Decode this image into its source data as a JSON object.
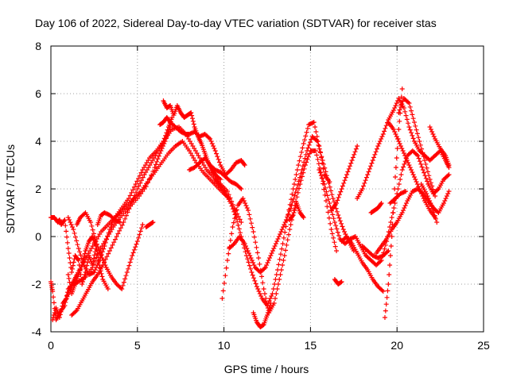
{
  "chart_data": {
    "type": "scatter",
    "title": "Day 106 of 2022, Sidereal Day-to-day VTEC variation (SDTVAR) for receiver stas",
    "xlabel": "GPS time / hours",
    "ylabel": "SDTVAR / TECUs",
    "xlim": [
      0,
      25
    ],
    "ylim": [
      -4,
      8
    ],
    "xticks": [
      0,
      5,
      10,
      15,
      20,
      25
    ],
    "yticks": [
      -4,
      -2,
      0,
      2,
      4,
      6,
      8
    ],
    "grid": true,
    "marker": "+",
    "series_color": "#ff0000",
    "series": [
      {
        "x": [
          0.0,
          0.2,
          0.4,
          0.5,
          0.6,
          0.8,
          1.0,
          1.2,
          1.4,
          1.6,
          1.8,
          2.0,
          2.2,
          2.4,
          2.6
        ],
        "y": [
          0.8,
          0.8,
          0.6,
          0.7,
          0.5,
          0.7,
          -0.5,
          -1.5,
          -0.8,
          -1.0,
          -2.0,
          -1.5,
          -0.8,
          -1.2,
          -0.5
        ]
      },
      {
        "x": [
          0.0,
          0.1,
          0.3,
          0.5,
          0.8,
          1.0,
          1.3,
          1.6,
          2.0,
          2.4,
          2.8,
          3.2,
          3.6,
          4.0,
          4.5,
          5.0,
          5.5,
          6.0,
          6.3,
          6.6,
          6.9
        ],
        "y": [
          -1.9,
          -2.3,
          -3.5,
          -3.2,
          -2.9,
          -2.2,
          -2.0,
          -1.9,
          -1.7,
          -1.3,
          -0.6,
          -0.1,
          0.4,
          0.8,
          1.2,
          1.6,
          2.1,
          2.9,
          3.5,
          4.0,
          4.6
        ]
      },
      {
        "x": [
          0.1,
          0.3,
          0.5,
          0.7,
          0.9,
          1.1,
          1.3,
          1.5,
          1.8,
          2.1,
          2.5,
          2.9,
          3.3,
          3.7,
          4.1,
          4.5,
          4.9,
          5.3,
          5.7,
          6.1,
          6.5,
          6.8,
          7.0
        ],
        "y": [
          -3.5,
          -3.0,
          -3.4,
          -2.8,
          -2.6,
          -2.2,
          -1.9,
          -1.6,
          -1.2,
          -0.8,
          -0.3,
          0.2,
          0.5,
          0.8,
          1.2,
          1.6,
          2.2,
          2.8,
          3.3,
          3.6,
          4.0,
          4.6,
          5.0
        ]
      },
      {
        "x": [
          1.2,
          1.5,
          1.8,
          2.1,
          2.4,
          2.7,
          3.0,
          3.4,
          3.8,
          4.2,
          4.6,
          5.0,
          5.4,
          5.8,
          6.2,
          6.6,
          7.0,
          7.4,
          7.8,
          8.2,
          8.6,
          9.0,
          9.4,
          9.8,
          10.2,
          10.6,
          11.0
        ],
        "y": [
          -3.3,
          -3.1,
          -2.7,
          -2.3,
          -1.9,
          -1.6,
          -1.2,
          -0.6,
          0.0,
          0.6,
          1.3,
          2.0,
          2.6,
          3.1,
          3.6,
          4.1,
          4.5,
          4.6,
          4.3,
          3.8,
          3.3,
          2.8,
          2.5,
          2.2,
          1.9,
          1.2,
          0.6
        ]
      },
      {
        "x": [
          1.0,
          1.3,
          1.6,
          1.9,
          2.2,
          2.5,
          2.8,
          3.1,
          3.4,
          3.7,
          4.0,
          4.4,
          4.8,
          5.2,
          5.6,
          6.0,
          6.4,
          6.8,
          7.2,
          7.6,
          8.0,
          8.4,
          8.8,
          9.2,
          9.6,
          10.0,
          10.3
        ],
        "y": [
          0.8,
          0.3,
          -0.5,
          -1.2,
          -1.6,
          -1.5,
          -1.0,
          -0.4,
          0.3,
          0.8,
          1.0,
          1.3,
          1.6,
          1.9,
          2.3,
          2.7,
          3.1,
          3.5,
          3.8,
          4.0,
          3.6,
          3.1,
          2.7,
          2.4,
          2.1,
          1.8,
          1.6
        ]
      },
      {
        "x": [
          1.0,
          1.2,
          1.4,
          1.6,
          1.8,
          2.0,
          2.2,
          2.4,
          2.6,
          2.8,
          3.0,
          3.3
        ],
        "y": [
          -1.6,
          -2.4,
          -2.0,
          -1.6,
          -1.2,
          -0.6,
          -0.2,
          0.0,
          -0.4,
          -1.2,
          -1.8,
          -2.2
        ]
      },
      {
        "x": [
          1.5,
          1.7,
          2.0,
          2.3,
          2.6,
          2.9,
          3.2,
          3.5,
          3.8,
          4.1,
          4.4,
          4.7,
          5.0,
          5.3
        ],
        "y": [
          0.5,
          0.8,
          1.0,
          0.6,
          -0.2,
          -0.8,
          -1.3,
          -1.7,
          -2.0,
          -2.2,
          -1.5,
          -0.8,
          -0.2,
          0.5
        ]
      },
      {
        "x": [
          2.7,
          2.9,
          3.1,
          3.4,
          3.7,
          4.0
        ],
        "y": [
          0.5,
          0.9,
          1.0,
          0.9,
          0.7,
          0.6
        ]
      },
      {
        "x": [
          5.5,
          5.7,
          5.9
        ],
        "y": [
          0.4,
          0.5,
          0.6
        ]
      },
      {
        "x": [
          6.5,
          6.7,
          6.9,
          7.1,
          7.3,
          7.5,
          7.7,
          7.9,
          8.1,
          8.3,
          8.5,
          8.7,
          8.9,
          9.1,
          9.3,
          9.5,
          9.8
        ],
        "y": [
          5.7,
          5.4,
          5.5,
          5.1,
          5.5,
          5.2,
          5.0,
          5.1,
          5.2,
          4.6,
          4.2,
          3.9,
          3.5,
          3.1,
          2.8,
          2.6,
          2.4
        ]
      },
      {
        "x": [
          6.3,
          6.5,
          6.7,
          6.9,
          7.2,
          7.5,
          7.8,
          8.0,
          8.3,
          8.6,
          8.9,
          9.2,
          9.5,
          9.8,
          10.1,
          10.4,
          10.7,
          11.0,
          11.2
        ],
        "y": [
          4.7,
          4.8,
          5.0,
          4.8,
          4.6,
          4.4,
          4.3,
          4.3,
          4.4,
          4.2,
          4.3,
          4.1,
          3.6,
          3.0,
          2.6,
          2.8,
          3.1,
          3.2,
          3.0
        ]
      },
      {
        "x": [
          8.0,
          8.3,
          8.6,
          8.9,
          9.2,
          9.5,
          9.8,
          10.1,
          10.4,
          10.7,
          11.0
        ],
        "y": [
          2.8,
          2.9,
          3.1,
          3.3,
          3.0,
          2.8,
          2.7,
          2.5,
          2.3,
          2.2,
          2.0
        ]
      },
      {
        "x": [
          9.5,
          9.8,
          10.1,
          10.4,
          10.7,
          11.0,
          11.3,
          11.6,
          11.9,
          12.2,
          12.5,
          12.8,
          13.1,
          13.4,
          13.7,
          14.0,
          14.3,
          14.6,
          14.9,
          15.2,
          15.5,
          15.8,
          16.1
        ],
        "y": [
          2.4,
          2.1,
          1.8,
          1.4,
          0.8,
          0.0,
          -0.8,
          -1.5,
          -2.1,
          -2.6,
          -2.9,
          -2.4,
          -1.4,
          -0.3,
          0.9,
          2.0,
          3.0,
          3.9,
          4.7,
          4.8,
          3.8,
          2.6,
          2.3
        ]
      },
      {
        "x": [
          9.9,
          10.2,
          10.5,
          10.8,
          11.1,
          11.4,
          11.7,
          12.0,
          12.3,
          12.6,
          12.9,
          13.2,
          13.5,
          13.8,
          14.1,
          14.4,
          14.7,
          15.0,
          15.3,
          15.6,
          15.9,
          16.2,
          16.5
        ],
        "y": [
          -2.6,
          -1.0,
          0.4,
          1.3,
          1.6,
          1.1,
          0.2,
          -0.9,
          -2.2,
          -3.2,
          -2.8,
          -1.8,
          -0.8,
          0.3,
          1.3,
          2.2,
          3.0,
          3.6,
          3.6,
          2.7,
          1.5,
          0.3,
          -0.6
        ]
      },
      {
        "x": [
          10.3,
          10.6,
          10.9,
          11.2,
          11.5,
          11.8,
          12.1,
          12.4,
          12.7,
          13.0,
          13.3,
          13.6,
          13.9,
          14.2,
          14.5,
          14.8,
          15.1,
          15.4,
          15.7,
          16.0,
          16.3,
          16.6,
          16.9,
          17.2,
          17.5
        ],
        "y": [
          -0.5,
          -0.3,
          0.0,
          -0.3,
          -0.8,
          -1.3,
          -1.5,
          -1.3,
          -0.8,
          -0.3,
          0.2,
          0.7,
          1.3,
          2.0,
          2.8,
          3.6,
          4.2,
          4.0,
          3.2,
          2.4,
          1.6,
          0.9,
          0.3,
          -0.2,
          -0.6
        ]
      },
      {
        "x": [
          11.7,
          11.9,
          12.1,
          12.3,
          12.5,
          12.7
        ],
        "y": [
          -3.2,
          -3.6,
          -3.8,
          -3.7,
          -3.3,
          -2.8
        ]
      },
      {
        "x": [
          13.8,
          14.0,
          14.2,
          14.4,
          14.6
        ],
        "y": [
          0.7,
          0.9,
          1.4,
          1.0,
          0.8
        ]
      },
      {
        "x": [
          15.5,
          15.8,
          16.1,
          16.4,
          16.7,
          17.0,
          17.3,
          17.6,
          17.9,
          18.2,
          18.5,
          18.8,
          19.1,
          19.4,
          19.7,
          20.0,
          20.3,
          20.6,
          20.9,
          21.2,
          21.5,
          21.8,
          22.1,
          22.4,
          22.7,
          23.0
        ],
        "y": [
          2.8,
          2.2,
          1.4,
          0.6,
          -0.1,
          -0.3,
          -0.1,
          0.0,
          -0.4,
          -0.8,
          -1.0,
          -1.2,
          -1.0,
          -0.2,
          0.8,
          1.8,
          2.8,
          3.4,
          3.6,
          3.4,
          2.8,
          2.2,
          1.8,
          2.0,
          2.4,
          2.6
        ]
      },
      {
        "x": [
          16.2,
          16.5,
          16.8,
          17.1,
          17.4,
          17.7
        ],
        "y": [
          1.1,
          1.4,
          2.0,
          2.6,
          3.2,
          3.8
        ]
      },
      {
        "x": [
          16.4,
          16.6,
          16.8
        ],
        "y": [
          -1.8,
          -2.0,
          -1.9
        ]
      },
      {
        "x": [
          16.8,
          17.1,
          17.4,
          17.7,
          18.0,
          18.3,
          18.6,
          18.9,
          19.2
        ],
        "y": [
          -0.2,
          0.0,
          -0.3,
          -0.7,
          -1.1,
          -1.4,
          -1.8,
          -2.1,
          -2.3
        ]
      },
      {
        "x": [
          17.7,
          18.0,
          18.3,
          18.6,
          18.9,
          19.2,
          19.5,
          19.8,
          20.1,
          20.4,
          20.7,
          21.0,
          21.3,
          21.6,
          21.9,
          22.2,
          22.5,
          22.8,
          23.0
        ],
        "y": [
          1.6,
          2.0,
          2.6,
          3.2,
          3.8,
          4.3,
          4.9,
          5.3,
          5.8,
          5.4,
          4.6,
          4.0,
          3.6,
          3.4,
          3.2,
          3.4,
          3.6,
          3.2,
          2.9
        ]
      },
      {
        "x": [
          18.8,
          19.1,
          19.4,
          19.7,
          20.0,
          20.3,
          20.6,
          20.9,
          21.2,
          21.5,
          21.8,
          22.1,
          22.4,
          22.7,
          23.0
        ],
        "y": [
          -0.7,
          -0.4,
          -0.1,
          0.3,
          0.6,
          1.0,
          1.5,
          1.9,
          2.0,
          1.8,
          1.5,
          1.2,
          1.0,
          1.4,
          1.9
        ]
      },
      {
        "x": [
          18.0,
          18.3,
          18.6,
          18.9,
          19.2,
          19.5
        ],
        "y": [
          -0.4,
          -0.6,
          -0.8,
          -0.9,
          -0.8,
          -0.6
        ]
      },
      {
        "x": [
          19.3,
          19.5,
          19.7,
          19.9,
          20.1,
          20.3
        ],
        "y": [
          -3.4,
          -2.0,
          0.0,
          2.5,
          4.5,
          6.2
        ]
      },
      {
        "x": [
          19.5,
          19.8,
          20.1,
          20.4,
          20.7,
          21.0,
          21.3,
          21.6,
          21.9,
          22.2
        ],
        "y": [
          4.8,
          4.5,
          4.0,
          3.5,
          3.0,
          2.5,
          2.0,
          1.5,
          1.1,
          0.8
        ]
      },
      {
        "x": [
          20.1,
          20.4,
          20.7,
          21.0,
          21.3,
          21.6,
          21.9,
          22.2
        ],
        "y": [
          5.2,
          5.8,
          5.6,
          4.8,
          4.0,
          3.2,
          2.4,
          1.7
        ]
      },
      {
        "x": [
          21.9,
          22.2,
          22.5,
          22.8,
          23.0
        ],
        "y": [
          4.6,
          4.1,
          3.7,
          3.4,
          3.0
        ]
      },
      {
        "x": [
          21.4,
          21.7,
          22.0,
          22.3
        ],
        "y": [
          2.2,
          1.8,
          1.3,
          0.6
        ]
      },
      {
        "x": [
          18.5,
          18.7,
          18.9,
          19.1
        ],
        "y": [
          1.0,
          1.1,
          1.2,
          1.4
        ]
      },
      {
        "x": [
          19.6,
          19.9,
          20.2,
          20.5
        ],
        "y": [
          1.4,
          1.6,
          1.8,
          1.9
        ]
      }
    ]
  }
}
